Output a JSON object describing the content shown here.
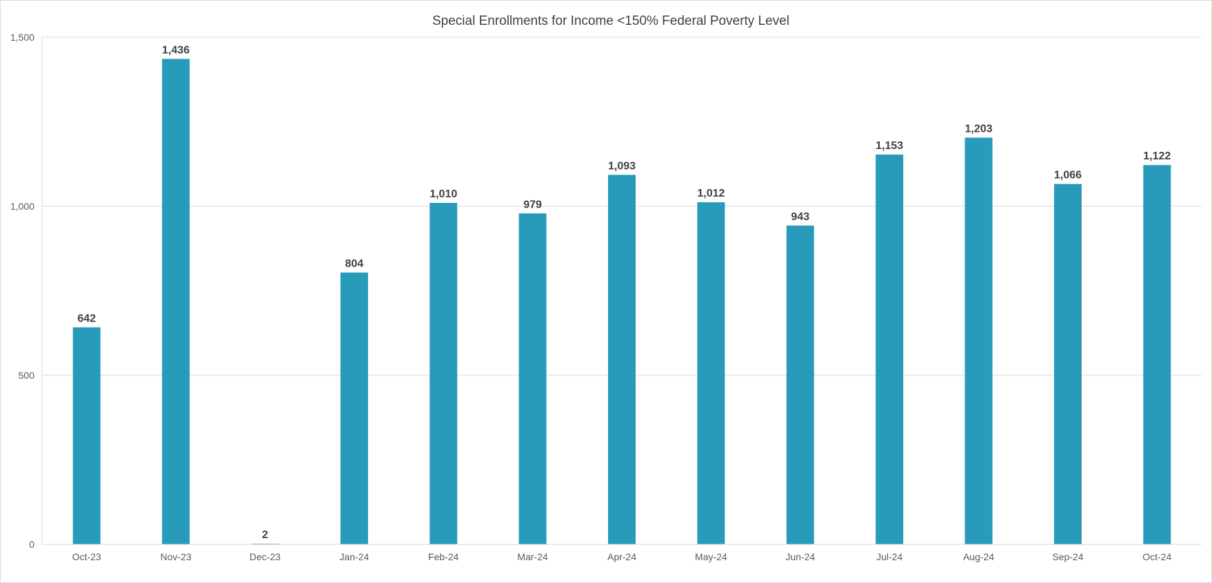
{
  "chart_data": {
    "type": "bar",
    "title": "Special Enrollments for Income <150% Federal Poverty Level",
    "xlabel": "",
    "ylabel": "",
    "categories": [
      "Oct-23",
      "Nov-23",
      "Dec-23",
      "Jan-24",
      "Feb-24",
      "Mar-24",
      "Apr-24",
      "May-24",
      "Jun-24",
      "Jul-24",
      "Aug-24",
      "Sep-24",
      "Oct-24"
    ],
    "values": [
      642,
      1436,
      2,
      804,
      1010,
      979,
      1093,
      1012,
      943,
      1153,
      1203,
      1066,
      1122
    ],
    "data_labels": [
      "642",
      "1,436",
      "2",
      "804",
      "1,010",
      "979",
      "1,093",
      "1,012",
      "943",
      "1,153",
      "1,203",
      "1,066",
      "1,122"
    ],
    "ylim": [
      0,
      1500
    ],
    "yticks": [
      0,
      500,
      1000,
      1500
    ],
    "ytick_labels": [
      "0",
      "500",
      "1,000",
      "1,500"
    ],
    "grid": true,
    "legend": "none",
    "bar_color": "#299bba",
    "grid_color": "#d9d9d9"
  }
}
